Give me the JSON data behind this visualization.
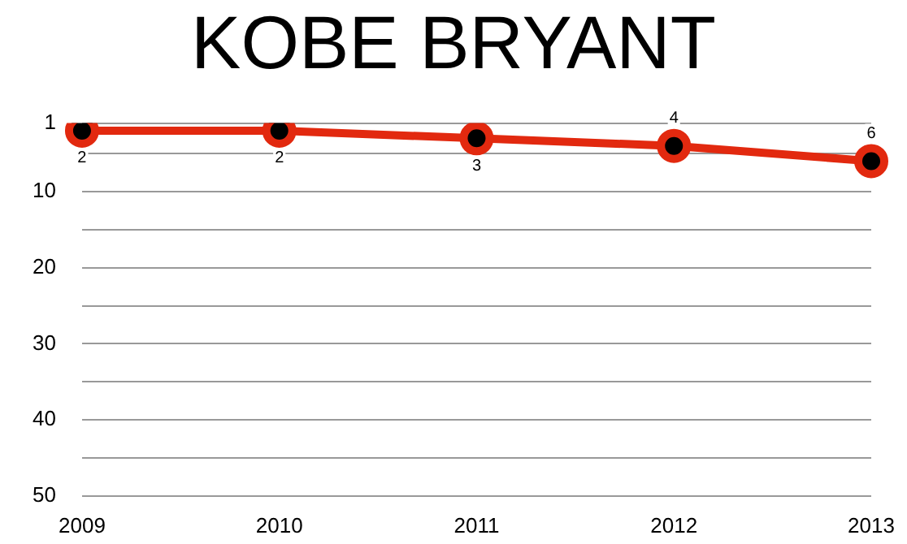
{
  "chart_data": {
    "type": "line",
    "title": "KOBE BRYANT",
    "categories": [
      "2009",
      "2010",
      "2011",
      "2012",
      "2013"
    ],
    "series": [
      {
        "color": "#e2290f",
        "values": [
          2,
          2,
          3,
          4,
          6
        ]
      }
    ],
    "data_labels": true,
    "marker": "circle",
    "ylim": [
      50,
      1
    ],
    "yticks": [
      1,
      {
        "value": 5,
        "label": null
      },
      10,
      {
        "value": 15,
        "label": null
      },
      20,
      {
        "value": 25,
        "label": null
      },
      30,
      {
        "value": 35,
        "label": null
      },
      40,
      {
        "value": 45,
        "label": null
      },
      50
    ],
    "grid": "y",
    "legend": false
  }
}
